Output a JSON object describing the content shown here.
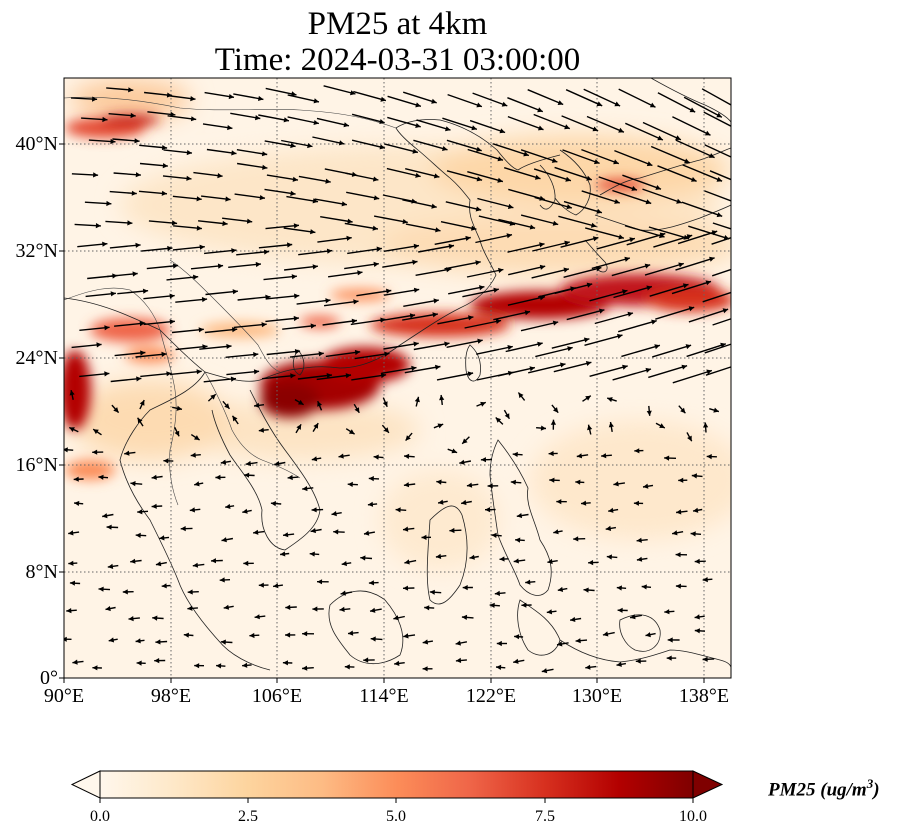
{
  "title": {
    "line1": "PM25 at 4km",
    "line2": "Time: 2024-03-31 03:00:00"
  },
  "map": {
    "extent": {
      "lon_min": 90,
      "lon_max": 140,
      "lat_min": 0,
      "lat_max": 45
    },
    "gridlines": "dotted",
    "lat_ticks": [
      "40°N",
      "32°N",
      "24°N",
      "16°N",
      "8°N",
      "0°"
    ],
    "lon_ticks": [
      "90°E",
      "98°E",
      "106°E",
      "114°E",
      "122°E",
      "130°E",
      "138°E"
    ],
    "layers": [
      "PM25 concentration (filled)",
      "wind vectors",
      "coastlines",
      "country borders"
    ],
    "high_pm25_regions": [
      "northern Vietnam / southern China",
      "East China Sea band to southern Japan",
      "northern Myanmar"
    ]
  },
  "colorbar": {
    "label": "PM25 (ug/m$^3$)",
    "label_text": "PM25",
    "label_unit": "(ug/m",
    "label_sup": "3",
    "label_close": ")",
    "ticks": [
      "0.0",
      "2.5",
      "5.0",
      "7.5",
      "10.0"
    ],
    "min": 0,
    "max": 10,
    "colormap": "OrRd",
    "colors": [
      "#fff7ec",
      "#fee8c8",
      "#fdd49e",
      "#fdbb84",
      "#fc8d59",
      "#ef6548",
      "#d7301f",
      "#b30000",
      "#7f0000"
    ],
    "extend": "both"
  }
}
